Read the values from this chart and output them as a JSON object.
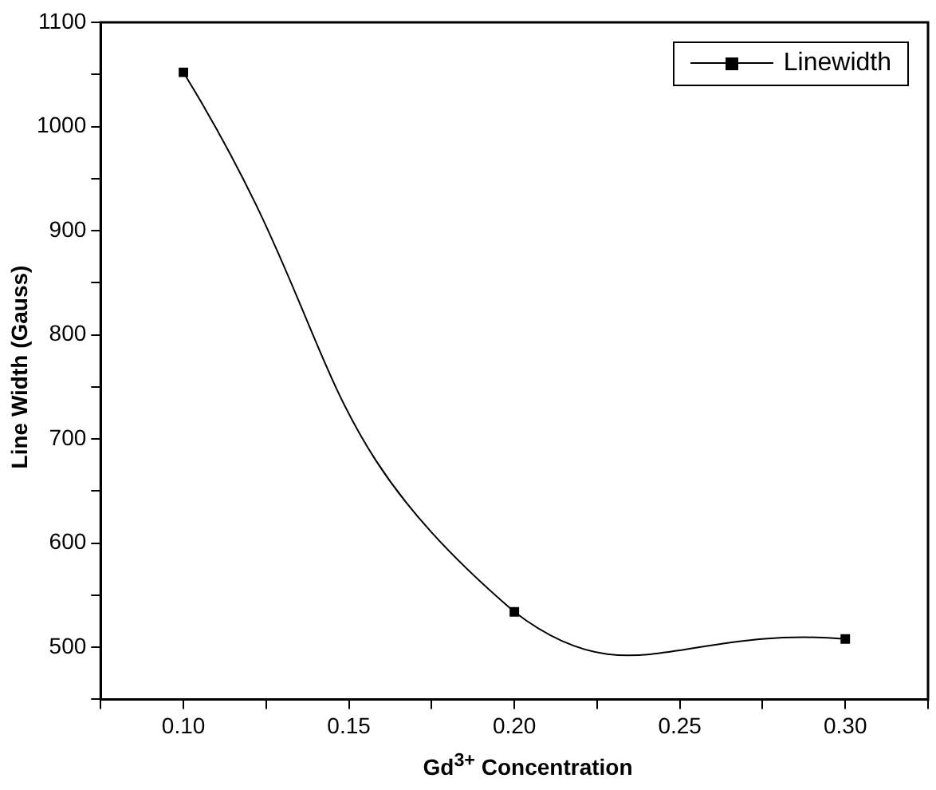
{
  "chart_data": {
    "type": "line",
    "xlabel": "Gd$^{3+}$ Concentration",
    "ylabel": "Line Width (Gauss)",
    "x": [
      0.1,
      0.2,
      0.3
    ],
    "series": [
      {
        "name": "Linewidth",
        "color": "#000000",
        "values": [
          1052,
          534,
          508
        ]
      }
    ],
    "xlim": [
      0.075,
      0.325
    ],
    "xticks": [
      {
        "value": 0.075,
        "label": null
      },
      {
        "value": 0.1,
        "label": "0.10"
      },
      {
        "value": 0.125,
        "label": null
      },
      {
        "value": 0.15,
        "label": "0.15"
      },
      {
        "value": 0.175,
        "label": null
      },
      {
        "value": 0.2,
        "label": "0.20"
      },
      {
        "value": 0.225,
        "label": null
      },
      {
        "value": 0.25,
        "label": "0.25"
      },
      {
        "value": 0.275,
        "label": null
      },
      {
        "value": 0.3,
        "label": "0.30"
      },
      {
        "value": 0.325,
        "label": null
      }
    ],
    "ylim": [
      450,
      1100
    ],
    "yticks": [
      {
        "value": 450,
        "label": null
      },
      500,
      {
        "value": 550,
        "label": null
      },
      600,
      {
        "value": 650,
        "label": null
      },
      700,
      {
        "value": 750,
        "label": null
      },
      800,
      {
        "value": 850,
        "label": null
      },
      900,
      {
        "value": 950,
        "label": null
      },
      1000,
      {
        "value": 1050,
        "label": null
      },
      1100
    ],
    "marker": "square",
    "legend": "top right",
    "grid": false
  }
}
